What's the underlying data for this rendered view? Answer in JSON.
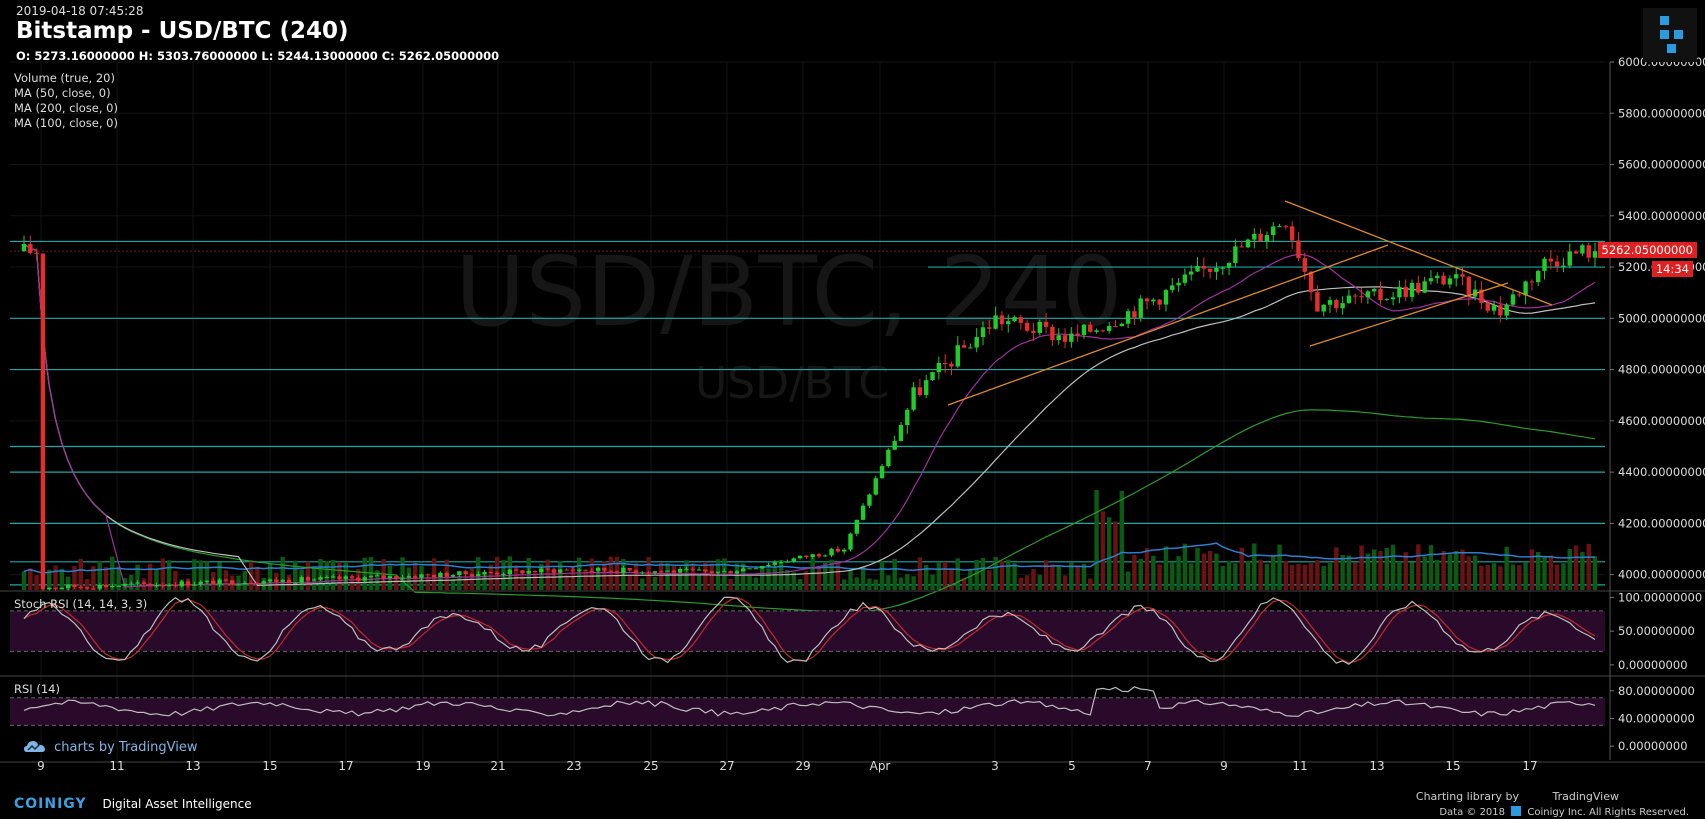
{
  "header": {
    "timestamp": "2019-04-18 07:45:28",
    "title": "Bitstamp - USD/BTC (240)",
    "ohlc": "O: 5273.16000000 H: 5303.76000000 L: 5244.13000000 C: 5262.05000000"
  },
  "indicators": [
    "Volume (true, 20)",
    "MA (50, close, 0)",
    "MA (200, close, 0)",
    "MA (100, close, 0)"
  ],
  "watermark": {
    "big": "USD/BTC, 240",
    "small": "USD/BTC"
  },
  "price_tag": "5262.05000000",
  "countdown": "14:34",
  "stoch_label": "Stoch RSI (14, 14, 3, 3)",
  "rsi_label": "RSI (14)",
  "tradingview_brand": "charts by TradingView",
  "footer": {
    "coinigy": "COINIGY",
    "tagline": "Digital Asset Intelligence",
    "charting_library": "Charting library by",
    "tradingview": "TradingView",
    "data_credit": "Data © 2018",
    "coinigy_credit": "Coinigy Inc. All Rights Reserved."
  },
  "colors": {
    "up": "#1fcc2a",
    "down": "#e52d2d",
    "hline": "#1aa8a8",
    "trendline": "#e08a20",
    "ma50": "#a22fa2",
    "ma100": "#2a9c2a",
    "ma200": "#bdbdbd",
    "volume_ma": "#2a7fd0",
    "stoch_k": "#bdbdbd",
    "stoch_d": "#c02a2a",
    "rsi_line": "#bdbdbd",
    "band_fill": "#2a0a2a"
  },
  "chart_data": [
    {
      "type": "candlestick",
      "title": "Bitstamp - USD/BTC (240)",
      "x_ticks": [
        "9",
        "11",
        "13",
        "15",
        "17",
        "19",
        "21",
        "23",
        "25",
        "27",
        "29",
        "Apr",
        "3",
        "5",
        "7",
        "9",
        "11",
        "13",
        "15",
        "17"
      ],
      "y_ticks": [
        "6000.00000000",
        "5800.00000000",
        "5600.00000000",
        "5400.00000000",
        "5200.00000000",
        "5000.00000000",
        "4800.00000000",
        "4600.00000000",
        "4400.00000000",
        "4200.00000000",
        "4000.00000000"
      ],
      "ylim": [
        3940,
        6000
      ],
      "daily_closes": [
        {
          "date": "Mar 8",
          "close": 3950
        },
        {
          "date": "Mar 16",
          "close": 3985
        },
        {
          "date": "Mar 21",
          "close": 4020
        },
        {
          "date": "Mar 28",
          "close": 4010
        },
        {
          "date": "Mar 31",
          "close": 4100
        },
        {
          "date": "Apr 2",
          "close": 4700
        },
        {
          "date": "Apr 3",
          "close": 5000
        },
        {
          "date": "Apr 5",
          "close": 4920
        },
        {
          "date": "Apr 7",
          "close": 5060
        },
        {
          "date": "Apr 9",
          "close": 5230
        },
        {
          "date": "Apr 10",
          "close": 5390
        },
        {
          "date": "Apr 11",
          "close": 5060
        },
        {
          "date": "Apr 13",
          "close": 5080
        },
        {
          "date": "Apr 15",
          "close": 5160
        },
        {
          "date": "Apr 16",
          "close": 5030
        },
        {
          "date": "Apr 17",
          "close": 5220
        },
        {
          "date": "Apr 18",
          "close": 5262
        }
      ],
      "horizontal_levels": [
        5300,
        5200,
        5000,
        4800,
        4500,
        4400,
        4200,
        4050,
        3960
      ],
      "moving_averages": [
        {
          "name": "MA (50, close, 0)",
          "end_value": 5140
        },
        {
          "name": "MA (100, close, 0)",
          "end_value": 4530
        },
        {
          "name": "MA (200, close, 0)",
          "end_value": 5060
        }
      ],
      "last_price": 5262.05
    },
    {
      "type": "line",
      "title": "Stoch RSI (14, 14, 3, 3)",
      "y_ticks": [
        "100.00000000",
        "50.00000000",
        "0.00000000"
      ],
      "ylim": [
        -15,
        108
      ],
      "bands": [
        20,
        80
      ]
    },
    {
      "type": "line",
      "title": "RSI (14)",
      "y_ticks": [
        "80.00000000",
        "40.00000000",
        "0.00000000"
      ],
      "ylim": [
        -20,
        100
      ],
      "bands": [
        30,
        70
      ]
    }
  ]
}
